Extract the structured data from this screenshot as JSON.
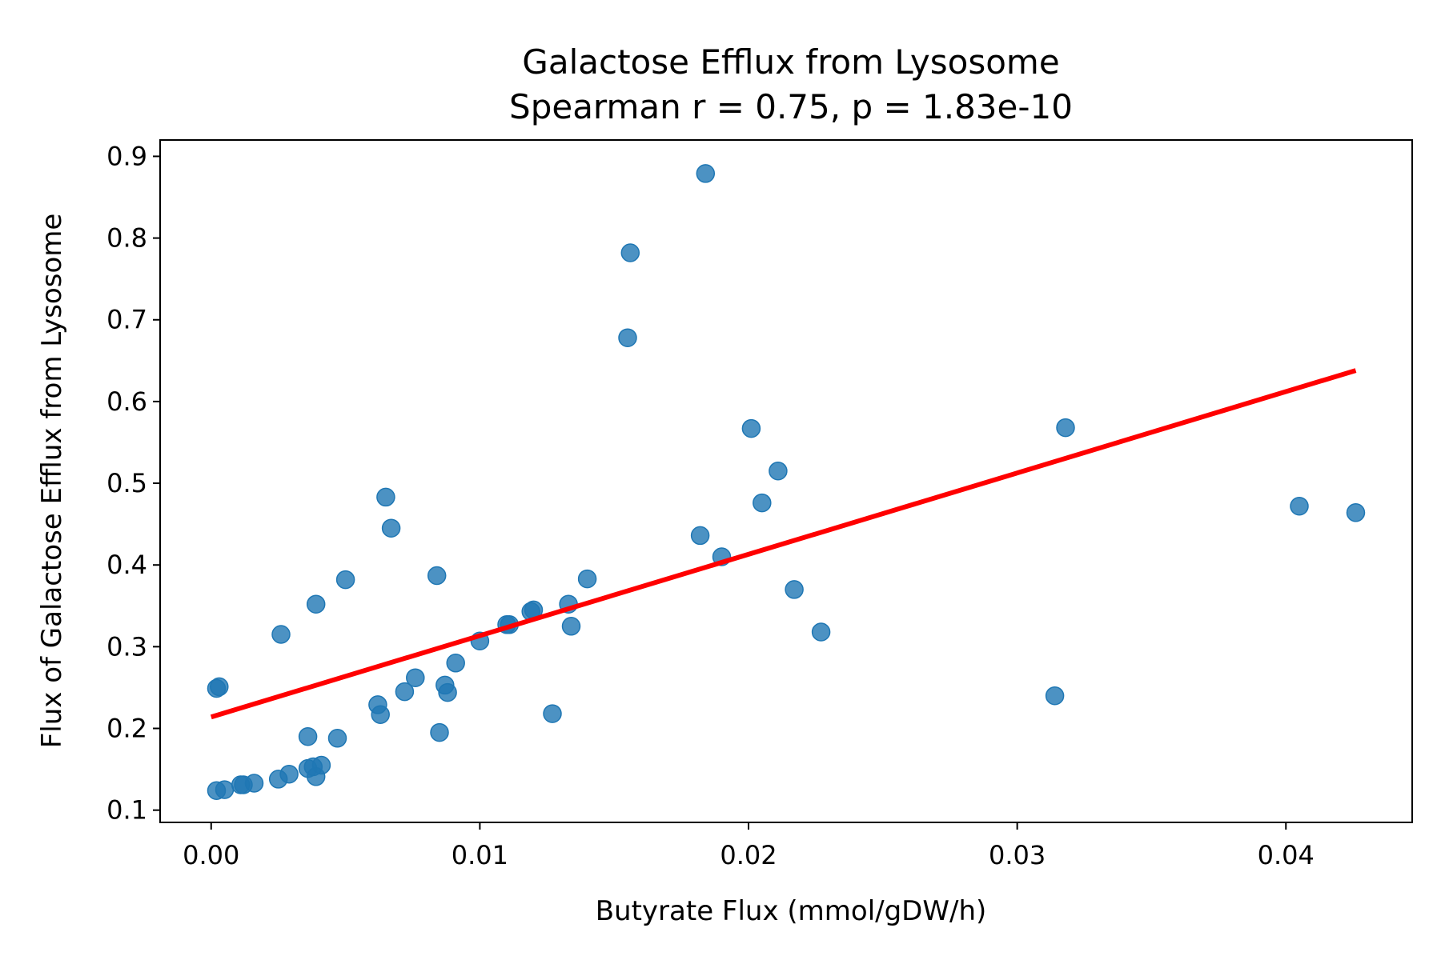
{
  "chart_data": {
    "type": "scatter",
    "title": "Galactose Efflux from Lysosome",
    "subtitle": "Spearman r = 0.75, p = 1.83e-10",
    "xlabel": "Butyrate Flux (mmol/gDW/h)",
    "ylabel": "Flux of Galactose Efflux from Lysosome",
    "xlim": [
      -0.0019,
      0.0447
    ],
    "ylim": [
      0.085,
      0.92
    ],
    "xticks": [
      0.0,
      0.01,
      0.02,
      0.03,
      0.04
    ],
    "xtick_labels": [
      "0.00",
      "0.01",
      "0.02",
      "0.03",
      "0.04"
    ],
    "yticks": [
      0.1,
      0.2,
      0.3,
      0.4,
      0.5,
      0.6,
      0.7,
      0.8,
      0.9
    ],
    "ytick_labels": [
      "0.1",
      "0.2",
      "0.3",
      "0.4",
      "0.5",
      "0.6",
      "0.7",
      "0.8",
      "0.9"
    ],
    "grid": false,
    "legend": "none",
    "colors": {
      "points": "#1f77b4",
      "fit_line": "#ff0000"
    },
    "points": [
      {
        "x": 0.0002,
        "y": 0.124
      },
      {
        "x": 0.0005,
        "y": 0.125
      },
      {
        "x": 0.0011,
        "y": 0.131
      },
      {
        "x": 0.0012,
        "y": 0.131
      },
      {
        "x": 0.0016,
        "y": 0.133
      },
      {
        "x": 0.0025,
        "y": 0.138
      },
      {
        "x": 0.0029,
        "y": 0.144
      },
      {
        "x": 0.0036,
        "y": 0.151
      },
      {
        "x": 0.0038,
        "y": 0.153
      },
      {
        "x": 0.0039,
        "y": 0.141
      },
      {
        "x": 0.0041,
        "y": 0.155
      },
      {
        "x": 0.0036,
        "y": 0.19
      },
      {
        "x": 0.0047,
        "y": 0.188
      },
      {
        "x": 0.0002,
        "y": 0.249
      },
      {
        "x": 0.0003,
        "y": 0.251
      },
      {
        "x": 0.0026,
        "y": 0.315
      },
      {
        "x": 0.0039,
        "y": 0.352
      },
      {
        "x": 0.005,
        "y": 0.382
      },
      {
        "x": 0.0062,
        "y": 0.229
      },
      {
        "x": 0.0063,
        "y": 0.217
      },
      {
        "x": 0.0065,
        "y": 0.483
      },
      {
        "x": 0.0067,
        "y": 0.445
      },
      {
        "x": 0.0072,
        "y": 0.245
      },
      {
        "x": 0.0076,
        "y": 0.262
      },
      {
        "x": 0.0084,
        "y": 0.387
      },
      {
        "x": 0.0085,
        "y": 0.195
      },
      {
        "x": 0.0087,
        "y": 0.253
      },
      {
        "x": 0.0088,
        "y": 0.244
      },
      {
        "x": 0.0091,
        "y": 0.28
      },
      {
        "x": 0.01,
        "y": 0.307
      },
      {
        "x": 0.011,
        "y": 0.327
      },
      {
        "x": 0.0111,
        "y": 0.327
      },
      {
        "x": 0.0119,
        "y": 0.343
      },
      {
        "x": 0.012,
        "y": 0.345
      },
      {
        "x": 0.0127,
        "y": 0.218
      },
      {
        "x": 0.0133,
        "y": 0.352
      },
      {
        "x": 0.0134,
        "y": 0.325
      },
      {
        "x": 0.014,
        "y": 0.383
      },
      {
        "x": 0.0155,
        "y": 0.678
      },
      {
        "x": 0.0156,
        "y": 0.782
      },
      {
        "x": 0.0182,
        "y": 0.436
      },
      {
        "x": 0.0184,
        "y": 0.879
      },
      {
        "x": 0.019,
        "y": 0.41
      },
      {
        "x": 0.0201,
        "y": 0.567
      },
      {
        "x": 0.0205,
        "y": 0.476
      },
      {
        "x": 0.0211,
        "y": 0.515
      },
      {
        "x": 0.0217,
        "y": 0.37
      },
      {
        "x": 0.0227,
        "y": 0.318
      },
      {
        "x": 0.0314,
        "y": 0.24
      },
      {
        "x": 0.0318,
        "y": 0.568
      },
      {
        "x": 0.0405,
        "y": 0.472
      },
      {
        "x": 0.0426,
        "y": 0.464
      }
    ],
    "fit_line": {
      "x": [
        0.0,
        0.0426
      ],
      "y": [
        0.214,
        0.638
      ]
    }
  }
}
